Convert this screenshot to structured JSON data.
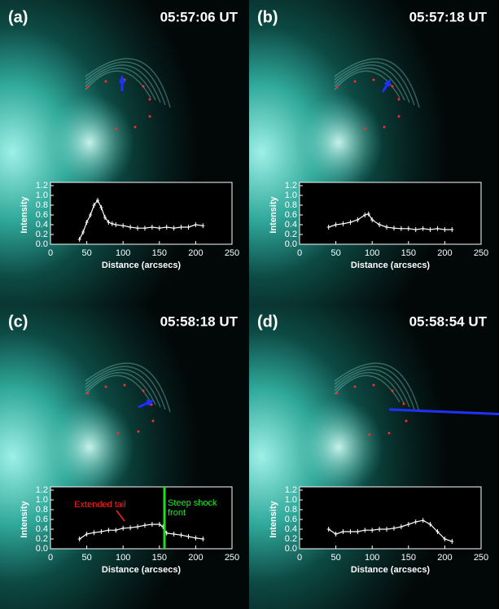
{
  "chart_data": [
    {
      "type": "line",
      "panel": "(a)",
      "time": "05:57:06 UT",
      "xlabel": "Distance (arcsecs)",
      "ylabel": "Intensity",
      "x": [
        40,
        45,
        50,
        55,
        60,
        65,
        70,
        75,
        80,
        85,
        90,
        100,
        110,
        120,
        130,
        140,
        150,
        160,
        170,
        180,
        190,
        200,
        210
      ],
      "values": [
        0.1,
        0.25,
        0.45,
        0.6,
        0.8,
        0.9,
        0.75,
        0.55,
        0.45,
        0.42,
        0.4,
        0.38,
        0.35,
        0.33,
        0.33,
        0.35,
        0.33,
        0.35,
        0.33,
        0.35,
        0.35,
        0.4,
        0.38
      ],
      "color": "#ffffff",
      "xlim": [
        0,
        250
      ],
      "ylim": [
        0,
        1.2
      ],
      "xticks": [
        0,
        50,
        100,
        150,
        200,
        250
      ],
      "yticks": [
        {
          "value": 0,
          "label": "0.0"
        },
        0.2,
        0.4,
        0.6,
        0.8,
        {
          "value": 1,
          "label": "1.0"
        },
        1.2
      ]
    },
    {
      "type": "line",
      "panel": "(b)",
      "time": "05:57:18 UT",
      "xlabel": "Distance (arcsecs)",
      "ylabel": "Intensity",
      "x": [
        40,
        50,
        60,
        70,
        80,
        90,
        95,
        100,
        110,
        120,
        130,
        140,
        150,
        160,
        170,
        180,
        190,
        200,
        210
      ],
      "values": [
        0.35,
        0.4,
        0.42,
        0.45,
        0.5,
        0.6,
        0.62,
        0.5,
        0.4,
        0.35,
        0.33,
        0.32,
        0.32,
        0.3,
        0.32,
        0.3,
        0.32,
        0.3,
        0.3
      ],
      "color": "#ffffff",
      "xlim": [
        0,
        250
      ],
      "ylim": [
        0,
        1.2
      ],
      "xticks": [
        0,
        50,
        100,
        150,
        200,
        250
      ],
      "yticks": [
        {
          "value": 0,
          "label": "0.0"
        },
        0.2,
        0.4,
        0.6,
        0.8,
        {
          "value": 1,
          "label": "1.0"
        },
        1.2
      ]
    },
    {
      "type": "line",
      "panel": "(c)",
      "time": "05:58:18 UT",
      "xlabel": "Distance (arcsecs)",
      "ylabel": "Intensity",
      "x": [
        40,
        50,
        60,
        70,
        80,
        90,
        100,
        110,
        120,
        130,
        140,
        150,
        155,
        160,
        170,
        180,
        190,
        200,
        210
      ],
      "values": [
        0.2,
        0.3,
        0.33,
        0.35,
        0.38,
        0.38,
        0.42,
        0.43,
        0.45,
        0.48,
        0.5,
        0.5,
        0.45,
        0.32,
        0.3,
        0.28,
        0.25,
        0.22,
        0.2
      ],
      "color": "#ffffff",
      "xlim": [
        0,
        250
      ],
      "ylim": [
        0,
        1.2
      ],
      "xticks": [
        0,
        50,
        100,
        150,
        200,
        250
      ],
      "yticks": [
        {
          "value": 0,
          "label": "0.0"
        },
        0.2,
        0.4,
        0.6,
        0.8,
        {
          "value": 1,
          "label": "1.0"
        },
        1.2
      ],
      "vline": 157,
      "vline_color": "#22dd22",
      "annotations": [
        {
          "text": "Extended tail",
          "color": "#ff2020"
        },
        {
          "text": "Steep shock front",
          "color": "#22ee22"
        }
      ]
    },
    {
      "type": "line",
      "panel": "(d)",
      "time": "05:58:54 UT",
      "xlabel": "Distance (arcsecs)",
      "ylabel": "Intensity",
      "x": [
        40,
        50,
        60,
        70,
        80,
        90,
        100,
        110,
        120,
        130,
        140,
        150,
        160,
        170,
        180,
        190,
        200,
        210
      ],
      "values": [
        0.4,
        0.3,
        0.35,
        0.35,
        0.35,
        0.38,
        0.38,
        0.4,
        0.4,
        0.42,
        0.45,
        0.5,
        0.55,
        0.58,
        0.5,
        0.35,
        0.2,
        0.15
      ],
      "color": "#ffffff",
      "xlim": [
        0,
        250
      ],
      "ylim": [
        0,
        1.2
      ],
      "xticks": [
        0,
        50,
        100,
        150,
        200,
        250
      ],
      "yticks": [
        {
          "value": 0,
          "label": "0.0"
        },
        0.2,
        0.4,
        0.6,
        0.8,
        {
          "value": 1,
          "label": "1.0"
        },
        1.2
      ]
    }
  ]
}
